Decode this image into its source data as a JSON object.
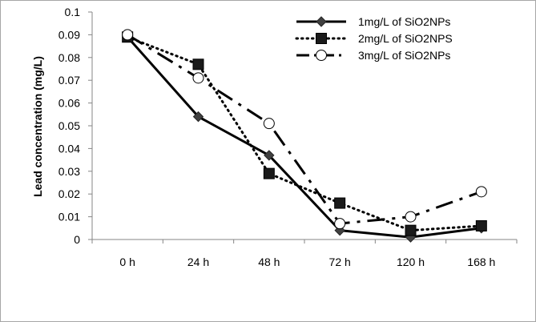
{
  "chart_data": {
    "type": "line",
    "categories": [
      "0 h",
      "24 h",
      "48 h",
      "72 h",
      "120 h",
      "168 h"
    ],
    "ylabel": "Lead concentration (mg/L)",
    "xlabel": "",
    "ylim": [
      0,
      0.1
    ],
    "yticks": [
      "0",
      "0.01",
      "0.02",
      "0.03",
      "0.04",
      "0.05",
      "0.06",
      "0.07",
      "0.08",
      "0.09",
      "0.1"
    ],
    "grid": false,
    "legend_position": "top-right",
    "series": [
      {
        "name": "1mg/L of SiO2NPs",
        "values": [
          0.089,
          0.054,
          0.037,
          0.004,
          0.001,
          0.005
        ],
        "style": "solid",
        "marker": "diamond",
        "color": "#000000",
        "marker_color": "#404040"
      },
      {
        "name": "2mg/L of SiO2NPS",
        "values": [
          0.089,
          0.077,
          0.029,
          0.016,
          0.004,
          0.006
        ],
        "style": "dotted",
        "marker": "square",
        "color": "#000000",
        "marker_color": "#1a1a1a"
      },
      {
        "name": "3mg/L of SiO2NPs",
        "values": [
          0.09,
          0.071,
          0.051,
          0.007,
          0.01,
          0.021
        ],
        "style": "dashdot",
        "marker": "circle",
        "color": "#000000",
        "marker_color": "#ffffff"
      }
    ]
  }
}
